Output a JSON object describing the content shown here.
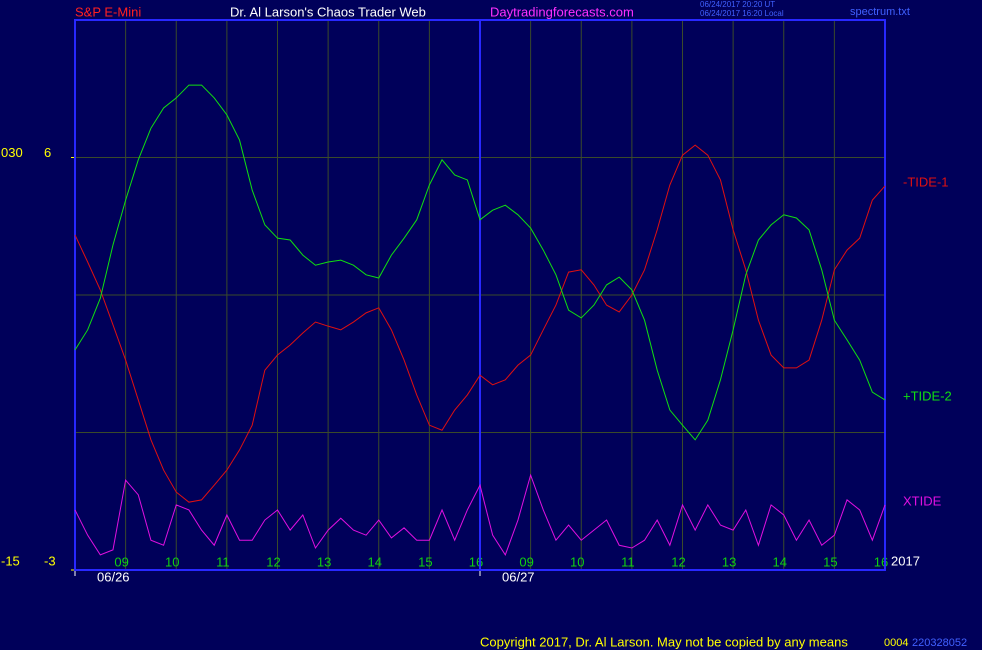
{
  "header": {
    "symbol": "S&P E-Mini",
    "site_title": "Dr. Al Larson's Chaos Trader Web",
    "site_url": "Daytradingforecasts.com",
    "timestamp_ut": "06/24/2017 20:20 UT",
    "timestamp_local": "06/24/2017 16:20 Local",
    "file": "spectrum.txt"
  },
  "footer": {
    "copyright": "Copyright 2017, Dr. Al Larson. May not be copied by any means",
    "code1": "0004",
    "code2": "220328052"
  },
  "chart_data": {
    "type": "line",
    "x": [
      -1,
      -0.75,
      -0.5,
      -0.25,
      0,
      0.25,
      0.5,
      0.75,
      1,
      1.25,
      1.5,
      1.75,
      2,
      2.25,
      2.5,
      2.75,
      3,
      3.25,
      3.5,
      3.75,
      4,
      4.25,
      4.5,
      4.75,
      5,
      5.25,
      5.5,
      5.75,
      6,
      6.25,
      6.5,
      6.75,
      7,
      7.25,
      7.5,
      7.75,
      8,
      8.25,
      8.5,
      8.75,
      9,
      9.25,
      9.5,
      9.75,
      10,
      10.25,
      10.5,
      10.75,
      11,
      11.25,
      11.5,
      11.75,
      12,
      12.25,
      12.5,
      12.75,
      13,
      13.25,
      13.5,
      13.75,
      14,
      14.25,
      14.5,
      14.75,
      15
    ],
    "xlim": [
      -1,
      15
    ],
    "xticks": [
      {
        "value": 0,
        "label": "09"
      },
      {
        "value": 1,
        "label": "10"
      },
      {
        "value": 2,
        "label": "11"
      },
      {
        "value": 3,
        "label": "12"
      },
      {
        "value": 4,
        "label": "13"
      },
      {
        "value": 5,
        "label": "14"
      },
      {
        "value": 6,
        "label": "15"
      },
      {
        "value": 7,
        "label": "16"
      },
      {
        "value": 8,
        "label": "09"
      },
      {
        "value": 9,
        "label": "10"
      },
      {
        "value": 10,
        "label": "11"
      },
      {
        "value": 11,
        "label": "12"
      },
      {
        "value": 12,
        "label": "13"
      },
      {
        "value": 13,
        "label": "14"
      },
      {
        "value": 14,
        "label": "15"
      },
      {
        "value": 15,
        "label": "16"
      }
    ],
    "day_labels": [
      {
        "value": -1,
        "label": "06/26"
      },
      {
        "value": 7,
        "label": "06/27"
      }
    ],
    "year_label": "2017",
    "ylim": [
      -3,
      9
    ],
    "yticks": [
      -3,
      6
    ],
    "ygrid": [
      0,
      3,
      6
    ],
    "y2lim": [
      -15,
      45
    ],
    "y2ticks": [
      -15,
      {
        "value": 30,
        "label": "030"
      }
    ],
    "grid": true,
    "series": [
      {
        "name": "-TIDE-1",
        "color": "#e01010",
        "values": [
          4.31,
          3.72,
          3.11,
          2.35,
          1.58,
          0.71,
          -0.16,
          -0.82,
          -1.3,
          -1.52,
          -1.47,
          -1.15,
          -0.82,
          -0.38,
          0.16,
          1.36,
          1.69,
          1.91,
          2.17,
          2.41,
          2.32,
          2.24,
          2.41,
          2.61,
          2.72,
          2.24,
          1.58,
          0.82,
          0.16,
          0.05,
          0.49,
          0.82,
          1.25,
          1.04,
          1.15,
          1.47,
          1.69,
          2.24,
          2.78,
          3.5,
          3.55,
          3.22,
          2.78,
          2.63,
          3.0,
          3.55,
          4.42,
          5.4,
          6.05,
          6.27,
          6.05,
          5.51,
          4.42,
          3.55,
          2.45,
          1.69,
          1.41,
          1.41,
          1.58,
          2.45,
          3.55,
          3.98,
          4.24,
          5.07,
          5.38
        ]
      },
      {
        "name": "+TIDE-2",
        "color": "#10e010",
        "values": [
          1.8,
          2.24,
          2.93,
          4.09,
          5.07,
          5.95,
          6.64,
          7.08,
          7.3,
          7.58,
          7.58,
          7.3,
          6.93,
          6.38,
          5.29,
          4.53,
          4.24,
          4.2,
          3.87,
          3.65,
          3.72,
          3.76,
          3.65,
          3.44,
          3.37,
          3.87,
          4.24,
          4.64,
          5.4,
          5.95,
          5.62,
          5.51,
          4.64,
          4.85,
          4.96,
          4.75,
          4.46,
          3.98,
          3.44,
          2.67,
          2.5,
          2.78,
          3.22,
          3.39,
          3.11,
          2.45,
          1.36,
          0.49,
          0.16,
          -0.16,
          0.27,
          1.15,
          2.24,
          3.44,
          4.2,
          4.53,
          4.75,
          4.68,
          4.42,
          3.55,
          2.45,
          2.02,
          1.58,
          0.88,
          0.71
        ]
      },
      {
        "name": "XTIDE",
        "color": "#e010e0",
        "values": [
          -1.69,
          -2.24,
          -2.67,
          -2.56,
          -1.04,
          -1.36,
          -2.35,
          -2.46,
          -1.58,
          -1.69,
          -2.13,
          -2.46,
          -1.8,
          -2.35,
          -2.35,
          -1.91,
          -1.69,
          -2.13,
          -1.8,
          -2.52,
          -2.13,
          -1.87,
          -2.13,
          -2.24,
          -1.91,
          -2.3,
          -2.08,
          -2.35,
          -2.35,
          -1.69,
          -2.35,
          -1.69,
          -1.15,
          -2.24,
          -2.67,
          -1.91,
          -0.93,
          -1.69,
          -2.35,
          -2.02,
          -2.35,
          -2.13,
          -1.91,
          -2.46,
          -2.52,
          -2.35,
          -1.91,
          -2.46,
          -1.58,
          -2.13,
          -1.58,
          -2.02,
          -2.13,
          -1.69,
          -2.46,
          -1.58,
          -1.8,
          -2.35,
          -1.91,
          -2.46,
          -2.24,
          -1.47,
          -1.69,
          -2.35,
          -1.58
        ]
      }
    ]
  }
}
